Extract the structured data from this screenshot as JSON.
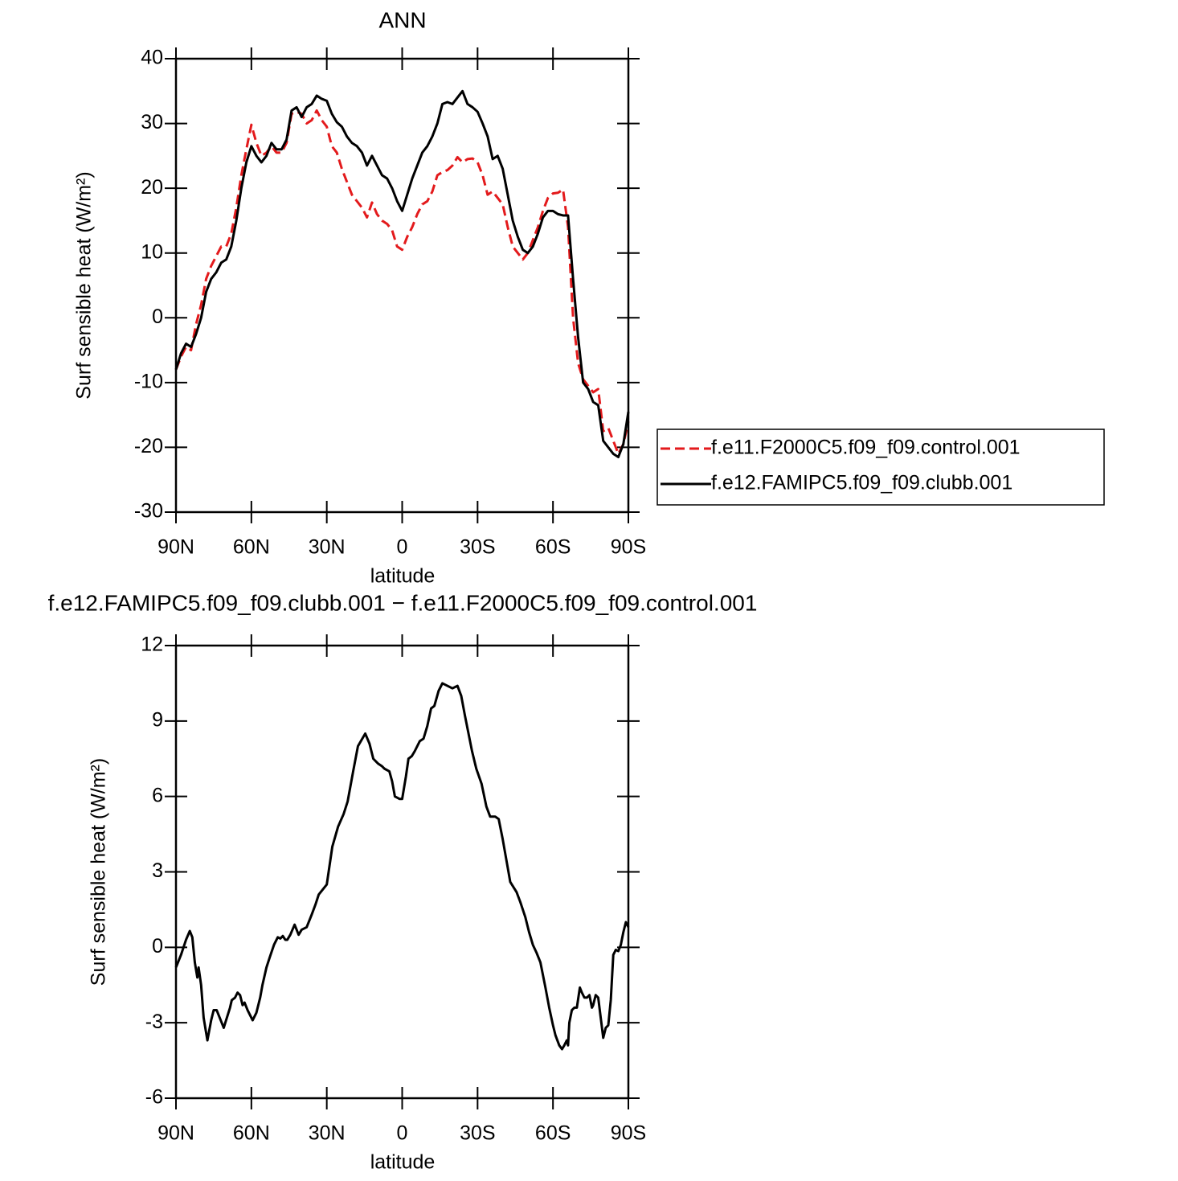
{
  "chart_data": [
    {
      "type": "line",
      "title": "ANN",
      "x_label": "latitude",
      "y_label": "Surf sensible heat (W/m²)",
      "xlim": [
        90,
        -90
      ],
      "xticks": [
        {
          "value": 90,
          "label": "90N"
        },
        {
          "value": 60,
          "label": "60N"
        },
        {
          "value": 30,
          "label": "30N"
        },
        0,
        {
          "value": -30,
          "label": "30S"
        },
        {
          "value": -60,
          "label": "60S"
        },
        {
          "value": -90,
          "label": "90S"
        }
      ],
      "ylim": [
        -30,
        40
      ],
      "yticks": [
        -30,
        -20,
        -10,
        0,
        10,
        20,
        30,
        40
      ],
      "legend": "right",
      "x": [
        90,
        88,
        86,
        84,
        82,
        80,
        78,
        76,
        74,
        72,
        70,
        68,
        66,
        64,
        62,
        60,
        58,
        56,
        54,
        52,
        50,
        48,
        46,
        44,
        42,
        40,
        38,
        36,
        34,
        32,
        30,
        28,
        26,
        24,
        22,
        20,
        18,
        16,
        14,
        12,
        10,
        8,
        6,
        4,
        2,
        0,
        -2,
        -4,
        -6,
        -8,
        -10,
        -12,
        -14,
        -16,
        -18,
        -20,
        -22,
        -24,
        -26,
        -28,
        -30,
        -32,
        -34,
        -36,
        -38,
        -40,
        -42,
        -44,
        -46,
        -48,
        -50,
        -52,
        -54,
        -56,
        -58,
        -60,
        -62,
        -64,
        -66,
        -68,
        -70,
        -72,
        -74,
        -76,
        -78,
        -80,
        -82,
        -84,
        -86,
        -88,
        -90
      ],
      "series": [
        {
          "name": "f.e11.F2000C5.f09_f09.control.001",
          "color": "#e31a1c",
          "line_style": "dashed",
          "values": [
            -8,
            -6,
            -4.5,
            -5,
            -1,
            2,
            6,
            8,
            9.5,
            11,
            11,
            13,
            17,
            22,
            26,
            29.8,
            27,
            25,
            25.5,
            26.5,
            25.5,
            25.5,
            27,
            31.5,
            31.8,
            31.5,
            30,
            30.5,
            32,
            30.5,
            29.5,
            26.5,
            25.5,
            23,
            21,
            19,
            18,
            17,
            15.5,
            17.8,
            16,
            15,
            14.5,
            13.5,
            11,
            10.5,
            12.5,
            14,
            16,
            17.5,
            18,
            19.5,
            22,
            22.5,
            22.8,
            23.5,
            24.8,
            24,
            24.5,
            24.6,
            24,
            22,
            19,
            19.5,
            18.5,
            17.5,
            14,
            11,
            10,
            9,
            10,
            12,
            14,
            16.5,
            18.5,
            19.2,
            19.3,
            19.8,
            14,
            0,
            -7,
            -9.5,
            -10.5,
            -11.5,
            -11,
            -17.5,
            -17,
            -19,
            -21,
            -19.5,
            -16
          ]
        },
        {
          "name": "f.e12.FAMIPC5.f09_f09.clubb.001",
          "color": "#000000",
          "line_style": "solid",
          "values": [
            -8,
            -5.5,
            -4,
            -4.5,
            -2.5,
            0,
            4,
            6,
            7,
            8.5,
            9,
            11,
            15,
            20,
            24,
            26.5,
            25,
            24,
            25,
            27,
            26,
            26,
            27.5,
            32,
            32.5,
            31,
            32.5,
            33,
            34.3,
            33.8,
            33.5,
            31.5,
            30.2,
            29.5,
            28,
            27,
            26.5,
            25.5,
            23.5,
            25,
            23.5,
            22,
            21.5,
            20,
            18,
            16.5,
            19,
            21.5,
            23.5,
            25.5,
            26.5,
            28,
            30,
            33,
            33.3,
            33,
            34,
            35,
            33,
            32.5,
            31.8,
            30,
            28,
            24.5,
            25,
            23,
            19,
            15,
            12.5,
            10.5,
            10,
            11,
            13,
            15.5,
            16.5,
            16.5,
            16,
            15.8,
            15.8,
            6,
            -3,
            -10,
            -11,
            -13,
            -13.5,
            -19,
            -20,
            -21,
            -21.5,
            -19.5,
            -14.5
          ]
        }
      ]
    },
    {
      "type": "line",
      "title": "f.e12.FAMIPC5.f09_f09.clubb.001 − f.e11.F2000C5.f09_f09.control.001",
      "x_label": "latitude",
      "y_label": "Surf sensible heat (W/m²)",
      "xlim": [
        90,
        -90
      ],
      "xticks": [
        {
          "value": 90,
          "label": "90N"
        },
        {
          "value": 60,
          "label": "60N"
        },
        {
          "value": 30,
          "label": "30N"
        },
        0,
        {
          "value": -30,
          "label": "30S"
        },
        {
          "value": -60,
          "label": "60S"
        },
        {
          "value": -90,
          "label": "90S"
        }
      ],
      "ylim": [
        -6,
        12
      ],
      "yticks": [
        -6,
        -3,
        0,
        3,
        6,
        9,
        12
      ],
      "x": [
        90,
        88,
        86,
        84.5,
        83.5,
        82.5,
        81.5,
        81,
        80,
        79,
        77.5,
        76,
        75,
        73.8,
        71,
        68.5,
        67.8,
        66.5,
        65.5,
        64.5,
        63.5,
        62.7,
        61.5,
        59.5,
        58,
        56.5,
        55.6,
        54,
        52.7,
        51,
        49.5,
        48.5,
        47.5,
        46.5,
        45.7,
        44.5,
        42.8,
        41.2,
        40,
        38,
        36,
        34.5,
        33.2,
        30,
        27.8,
        25.5,
        23.3,
        21.7,
        19.5,
        17.6,
        14.7,
        13,
        11.5,
        10.5,
        9.5,
        8,
        7,
        5.1,
        4,
        2.9,
        1,
        0,
        -1.5,
        -2.5,
        -3.8,
        -5,
        -7,
        -8.5,
        -10,
        -11.5,
        -12.8,
        -14.5,
        -16,
        -18,
        -20,
        -22,
        -23.5,
        -25,
        -27.8,
        -29.5,
        -31.6,
        -33.5,
        -35,
        -37,
        -38.4,
        -40,
        -43,
        -45.5,
        -47,
        -49,
        -50.5,
        -52,
        -53.4,
        -55,
        -57,
        -58.5,
        -60,
        -61,
        -62.5,
        -63.6,
        -64.5,
        -65.5,
        -66,
        -66.5,
        -67.5,
        -68.5,
        -69.5,
        -70.7,
        -71.5,
        -72.5,
        -73.5,
        -74.5,
        -75.5,
        -76,
        -77,
        -78,
        -79,
        -80,
        -81,
        -82,
        -83,
        -84,
        -85,
        -86,
        -87,
        -88,
        -89,
        -90
      ],
      "series": [
        {
          "color": "#000000",
          "line_style": "solid",
          "values": [
            -0.8,
            -0.3,
            0.3,
            0.65,
            0.4,
            -0.6,
            -1.2,
            -0.8,
            -1.5,
            -2.8,
            -3.7,
            -2.9,
            -2.5,
            -2.5,
            -3.2,
            -2.4,
            -2.1,
            -2.0,
            -1.8,
            -1.9,
            -2.3,
            -2.2,
            -2.5,
            -2.9,
            -2.6,
            -2.0,
            -1.5,
            -0.8,
            -0.4,
            0.1,
            0.4,
            0.35,
            0.45,
            0.3,
            0.3,
            0.5,
            0.9,
            0.5,
            0.7,
            0.8,
            1.3,
            1.7,
            2.1,
            2.5,
            4.0,
            4.8,
            5.3,
            5.8,
            7.0,
            8.0,
            8.5,
            8.1,
            7.5,
            7.4,
            7.3,
            7.2,
            7.1,
            7.0,
            6.6,
            6.0,
            5.9,
            5.9,
            6.8,
            7.5,
            7.6,
            7.8,
            8.2,
            8.3,
            8.8,
            9.5,
            9.6,
            10.2,
            10.5,
            10.4,
            10.3,
            10.4,
            10.0,
            9.2,
            7.8,
            7.1,
            6.5,
            5.6,
            5.2,
            5.2,
            5.1,
            4.3,
            2.6,
            2.2,
            1.8,
            1.2,
            0.6,
            0.1,
            -0.2,
            -0.6,
            -1.6,
            -2.4,
            -3.1,
            -3.5,
            -3.9,
            -4.05,
            -3.9,
            -3.7,
            -3.9,
            -3.0,
            -2.5,
            -2.4,
            -2.4,
            -1.6,
            -1.8,
            -2.0,
            -2.0,
            -1.9,
            -2.4,
            -2.3,
            -1.9,
            -2.0,
            -2.8,
            -3.6,
            -3.2,
            -3.1,
            -2.1,
            -0.3,
            -0.1,
            -0.15,
            0.1,
            0.6,
            1.0,
            0.8
          ]
        }
      ]
    }
  ]
}
